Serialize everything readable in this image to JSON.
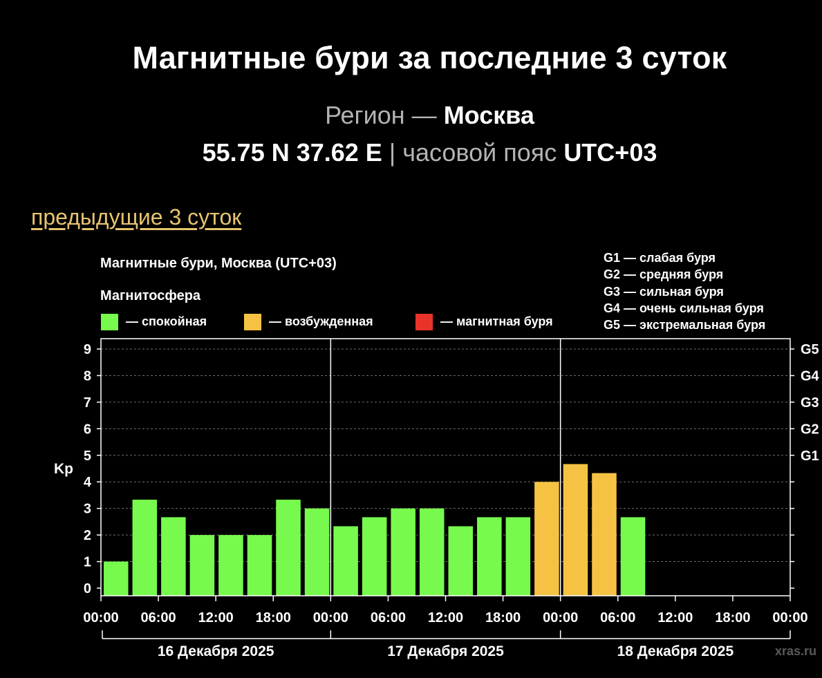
{
  "page": {
    "title": "Магнитные бури за последние 3 суток",
    "region_label": "Регион —",
    "region_name": "Москва",
    "coords": "55.75 N 37.62 E",
    "separator": "|",
    "timezone_label": "часовой пояс",
    "timezone": "UTC+03",
    "prev_link": "предыдущие 3 суток"
  },
  "chart_data": {
    "type": "bar",
    "title": "Магнитные бури, Москва (UTC+03)",
    "legend_title": "Магнитосфера",
    "legend": [
      {
        "label": "— спокойная",
        "color": "#77fa4d"
      },
      {
        "label": "— возбужденная",
        "color": "#f5c244"
      },
      {
        "label": "— магнитная буря",
        "color": "#e8332a"
      }
    ],
    "storm_scale": [
      "G1 — слабая буря",
      "G2 — средняя буря",
      "G3 — сильная буря",
      "G4 — очень сильная буря",
      "G5 — экстремальная буря"
    ],
    "ylabel": "Kp",
    "ylim": [
      0,
      9
    ],
    "yticks": [
      0,
      1,
      2,
      3,
      4,
      5,
      6,
      7,
      8,
      9
    ],
    "right_ticks": [
      {
        "kp": 5,
        "label": "G1"
      },
      {
        "kp": 6,
        "label": "G2"
      },
      {
        "kp": 7,
        "label": "G3"
      },
      {
        "kp": 8,
        "label": "G4"
      },
      {
        "kp": 9,
        "label": "G5"
      }
    ],
    "xlim_hours": [
      0,
      72
    ],
    "xtick_labels": [
      "00:00",
      "06:00",
      "12:00",
      "18:00",
      "00:00",
      "06:00",
      "12:00",
      "18:00",
      "00:00",
      "06:00",
      "12:00",
      "18:00",
      "00:00"
    ],
    "days": [
      "16 Декабря 2025",
      "17 Декабря 2025",
      "18 Декабря 2025"
    ],
    "interval_hours": 3,
    "colors": {
      "quiet": "#77fa4d",
      "active": "#f5c244",
      "storm": "#e8332a"
    },
    "values": [
      1.0,
      3.33,
      2.67,
      2.0,
      2.0,
      2.0,
      3.33,
      3.0,
      2.33,
      2.67,
      3.0,
      3.0,
      2.33,
      2.67,
      2.67,
      4.0,
      4.67,
      4.33,
      2.67
    ],
    "grid": true,
    "watermark": "xras.ru"
  }
}
